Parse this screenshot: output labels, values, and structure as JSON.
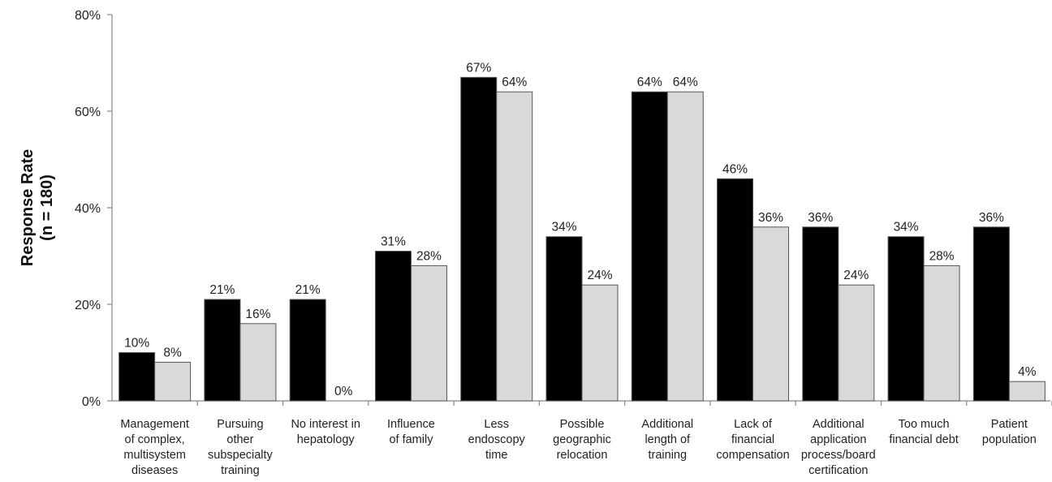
{
  "chart_data": {
    "type": "bar",
    "title": "",
    "xlabel": "",
    "ylabel": [
      "Response Rate",
      "(n = 180)"
    ],
    "ylim": [
      0,
      80
    ],
    "y_ticks": [
      "0%",
      "20%",
      "40%",
      "60%",
      "80%"
    ],
    "y_tick_values": [
      0,
      20,
      40,
      60,
      80
    ],
    "grid": false,
    "legend": "none",
    "categories": [
      [
        "Management",
        "of complex,",
        "multisystem",
        "diseases"
      ],
      [
        "Pursuing",
        "other",
        "subspecialty",
        "training"
      ],
      [
        "No interest in",
        "hepatology"
      ],
      [
        "Influence",
        "of family"
      ],
      [
        "Less",
        "endoscopy",
        "time"
      ],
      [
        "Possible",
        "geographic",
        "relocation"
      ],
      [
        "Additional",
        "length of",
        "training"
      ],
      [
        "Lack of",
        "financial",
        "compensation"
      ],
      [
        "Additional",
        "application",
        "process/board",
        "certification"
      ],
      [
        "Too much",
        "financial debt"
      ],
      [
        "Patient",
        "population"
      ]
    ],
    "series": [
      {
        "color": "#000000",
        "values": [
          10,
          21,
          21,
          31,
          67,
          34,
          64,
          46,
          36,
          34,
          36
        ],
        "labels": [
          "10%",
          "21%",
          "21%",
          "31%",
          "67%",
          "34%",
          "64%",
          "46%",
          "36%",
          "34%",
          "36%"
        ]
      },
      {
        "color": "#d9d9d9",
        "values": [
          8,
          16,
          0,
          28,
          64,
          24,
          64,
          36,
          24,
          28,
          4
        ],
        "labels": [
          "8%",
          "16%",
          "0%",
          "28%",
          "64%",
          "24%",
          "64%",
          "36%",
          "24%",
          "28%",
          "4%"
        ]
      }
    ]
  }
}
